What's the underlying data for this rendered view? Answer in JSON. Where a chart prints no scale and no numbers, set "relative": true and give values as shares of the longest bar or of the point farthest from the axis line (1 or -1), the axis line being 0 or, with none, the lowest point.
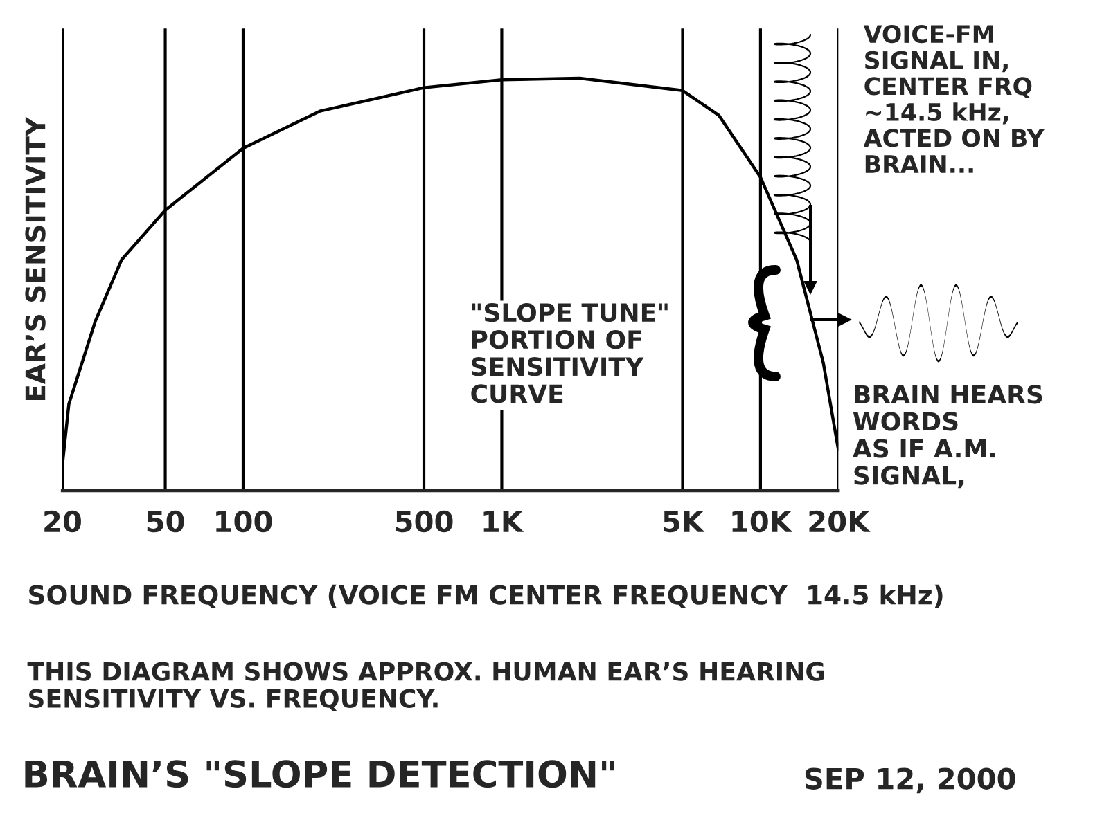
{
  "chart_data": {
    "type": "line",
    "title": "BRAIN’S \"SLOPE DETECTION\"",
    "xlabel": "SOUND FREQUENCY (VOICE FM CENTER FREQUENCY  14.5 kHz)",
    "ylabel": "EAR’S SENSITIVITY",
    "relative": true,
    "log": "x",
    "grid": "x",
    "marker": "none",
    "line_style": "solid",
    "x": [
      20,
      21.2,
      26.8,
      33.9,
      50,
      100,
      198,
      500,
      1000,
      2000,
      5000,
      6900,
      10000,
      13800,
      17500,
      20000
    ],
    "series": [
      {
        "color": "#000000",
        "values": [
          0.06,
          0.21,
          0.41,
          0.56,
          0.68,
          0.83,
          0.92,
          0.977,
          0.996,
          1,
          0.97,
          0.91,
          0.76,
          0.56,
          0.31,
          0.1
        ]
      }
    ],
    "xlim": [
      20,
      20000
    ],
    "xticks": [
      20,
      50,
      100,
      500,
      {
        "value": 1000,
        "label": "1K"
      },
      {
        "value": 5000,
        "label": "5K"
      },
      {
        "value": 10000,
        "label": "10K"
      },
      {
        "value": 20000,
        "label": "20K"
      }
    ],
    "annotations": [
      "VOICE-FM\nSIGNAL IN,\nCENTER FRQ\n~14.5 kHz,\nACTED ON BY\nBRAIN...",
      "\"SLOPE TUNE\"\nPORTION OF\nSENSITIVITY\nCURVE",
      "BRAIN HEARS\nWORDS\nAS IF A.M.\nSIGNAL,",
      "THIS DIAGRAM SHOWS APPROX. HUMAN EAR’S HEARING\nSENSITIVITY VS. FREQUENCY.",
      "SEP 12, 2000"
    ]
  }
}
